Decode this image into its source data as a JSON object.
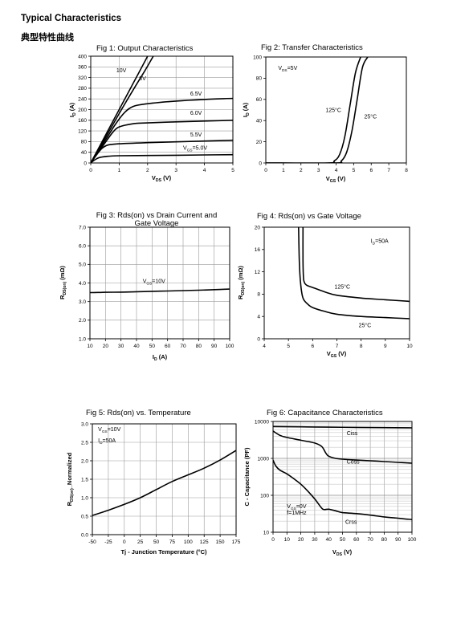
{
  "header": {
    "title": "Typical Characteristics",
    "subtitle": "典型特性曲线"
  },
  "chart_data": [
    {
      "id": "fig1",
      "type": "line",
      "title": "Fig 1: Output Characteristics",
      "xlabel": "V",
      "xlabel_sub": "DS",
      "xlabel_unit": " (V)",
      "ylabel": "I",
      "ylabel_sub": "D",
      "ylabel_unit": " (A)",
      "xlim": [
        0,
        5
      ],
      "ylim": [
        0,
        400
      ],
      "xticks": [
        0,
        1,
        2,
        3,
        4,
        5
      ],
      "yticks": [
        0,
        40,
        80,
        120,
        160,
        200,
        240,
        280,
        320,
        360,
        400
      ],
      "yticks_labels": [
        "0",
        "40",
        "80",
        "120",
        "160",
        "200",
        "240",
        "280",
        "320",
        "360",
        "400"
      ],
      "xticks_labels": [
        "0",
        "1",
        "2",
        "3",
        "4",
        "5"
      ],
      "grid": true,
      "series": [
        {
          "name": "10V",
          "x": [
            0,
            0.3,
            0.6,
            1.0,
            1.5,
            2.0
          ],
          "y": [
            0,
            60,
            120,
            200,
            300,
            400
          ]
        },
        {
          "name": "8V",
          "x": [
            0,
            0.3,
            0.6,
            1.0,
            1.5,
            1.9,
            2.2
          ],
          "y": [
            0,
            55,
            110,
            185,
            275,
            345,
            400
          ]
        },
        {
          "name": "6.5V",
          "x": [
            0,
            0.3,
            0.6,
            0.9,
            1.2,
            1.5,
            2.0,
            3.0,
            4.0,
            5.0
          ],
          "y": [
            0,
            50,
            100,
            150,
            190,
            212,
            222,
            232,
            238,
            242
          ]
        },
        {
          "name": "6.0V",
          "x": [
            0,
            0.3,
            0.6,
            0.8,
            1.0,
            1.5,
            2.0,
            3.0,
            4.0,
            5.0
          ],
          "y": [
            0,
            45,
            90,
            118,
            135,
            147,
            150,
            154,
            157,
            160
          ]
        },
        {
          "name": "5.5V",
          "x": [
            0,
            0.2,
            0.4,
            0.6,
            1.0,
            2.0,
            3.0,
            4.0,
            5.0
          ],
          "y": [
            0,
            30,
            55,
            67,
            72,
            76,
            79,
            82,
            85
          ]
        },
        {
          "name": "5.0V",
          "x": [
            0,
            0.15,
            0.3,
            0.6,
            1.0,
            2.0,
            3.0,
            4.0,
            5.0
          ],
          "y": [
            0,
            12,
            20,
            25,
            27,
            28,
            29,
            30,
            31
          ]
        }
      ],
      "labels": [
        {
          "text": "10V",
          "x": 0.9,
          "y": 340
        },
        {
          "text": "8V",
          "x": 1.7,
          "y": 310
        },
        {
          "text": "6.5V",
          "x": 3.5,
          "y": 252
        },
        {
          "text": "6.0V",
          "x": 3.5,
          "y": 180
        },
        {
          "text": "5.5V",
          "x": 3.5,
          "y": 100
        },
        {
          "text": "V",
          "sub": "GS",
          "after": "=5.0V",
          "x": 3.25,
          "y": 50
        }
      ]
    },
    {
      "id": "fig2",
      "type": "line",
      "title": "Fig 2: Transfer Characteristics",
      "xlabel": "V",
      "xlabel_sub": "GS",
      "xlabel_unit": " (V)",
      "ylabel": "I",
      "ylabel_sub": "D",
      "ylabel_unit": " (A)",
      "xlim": [
        0,
        8
      ],
      "ylim": [
        0,
        100
      ],
      "xticks": [
        0,
        1,
        2,
        3,
        4,
        5,
        6,
        7,
        8
      ],
      "yticks": [
        0,
        20,
        40,
        60,
        80,
        100
      ],
      "xticks_labels": [
        "0",
        "1",
        "2",
        "3",
        "4",
        "5",
        "6",
        "7",
        "8"
      ],
      "yticks_labels": [
        "0",
        "20",
        "40",
        "60",
        "80",
        "100"
      ],
      "grid": false,
      "series": [
        {
          "name": "125°C",
          "x": [
            0,
            3.5,
            3.9,
            4.2,
            4.5,
            4.8,
            5.1,
            5.4
          ],
          "y": [
            0,
            0,
            2,
            8,
            25,
            55,
            85,
            100
          ]
        },
        {
          "name": "25°C",
          "x": [
            0,
            3.9,
            4.3,
            4.6,
            4.9,
            5.2,
            5.5,
            5.8
          ],
          "y": [
            0,
            0,
            2,
            10,
            30,
            60,
            90,
            100
          ]
        }
      ],
      "labels": [
        {
          "text": "V",
          "sub": "DS",
          "after": "=5V",
          "x": 0.7,
          "y": 88
        },
        {
          "text": "125°C",
          "x": 3.4,
          "y": 48
        },
        {
          "text": "25°C",
          "x": 5.6,
          "y": 42
        }
      ]
    },
    {
      "id": "fig3",
      "type": "line",
      "title": "Fig 3: Rds(on) vs Drain Current and",
      "title2": "Gate Voltage",
      "xlabel": "I",
      "xlabel_sub": "D",
      "xlabel_unit": " (A)",
      "ylabel": "R",
      "ylabel_sub": "DS(on)",
      "ylabel_unit": " (mΩ)",
      "xlim": [
        10,
        100
      ],
      "ylim": [
        1.0,
        7.0
      ],
      "xticks": [
        10,
        20,
        30,
        40,
        50,
        60,
        70,
        80,
        90,
        100
      ],
      "yticks": [
        1.0,
        2.0,
        3.0,
        4.0,
        5.0,
        6.0,
        7.0
      ],
      "xticks_labels": [
        "10",
        "20",
        "30",
        "40",
        "50",
        "60",
        "70",
        "80",
        "90",
        "100"
      ],
      "yticks_labels": [
        "1.0",
        "2.0",
        "3.0",
        "4.0",
        "5.0",
        "6.0",
        "7.0"
      ],
      "grid": true,
      "series": [
        {
          "name": "V_GS=10V",
          "x": [
            10,
            20,
            30,
            40,
            50,
            60,
            70,
            80,
            90,
            100
          ],
          "y": [
            3.48,
            3.5,
            3.51,
            3.53,
            3.55,
            3.57,
            3.59,
            3.61,
            3.64,
            3.67
          ]
        }
      ],
      "labels": [
        {
          "text": "V",
          "sub": "GS",
          "after": "=10V",
          "x": 44,
          "y": 4.0
        }
      ]
    },
    {
      "id": "fig4",
      "type": "line",
      "title": "Fig 4: Rds(on) vs Gate Voltage",
      "xlabel": "V",
      "xlabel_sub": "GS",
      "xlabel_unit": " (V)",
      "ylabel": "R",
      "ylabel_sub": "DS(on)",
      "ylabel_unit": " (mΩ)",
      "xlim": [
        4,
        10
      ],
      "ylim": [
        0,
        20
      ],
      "xticks": [
        4,
        5,
        6,
        7,
        8,
        9,
        10
      ],
      "yticks": [
        0,
        4,
        8,
        12,
        16,
        20
      ],
      "xticks_labels": [
        "4",
        "5",
        "6",
        "7",
        "8",
        "9",
        "10"
      ],
      "yticks_labels": [
        "0",
        "4",
        "8",
        "12",
        "16",
        "20"
      ],
      "grid": false,
      "series": [
        {
          "name": "125°C",
          "x": [
            5.6,
            5.6,
            5.62,
            5.65,
            5.7,
            5.8,
            6.0,
            6.5,
            7.0,
            8.0,
            9.0,
            10.0
          ],
          "y": [
            20,
            14,
            11,
            10.2,
            9.8,
            9.5,
            9.2,
            8.4,
            7.8,
            7.3,
            7.0,
            6.7
          ]
        },
        {
          "name": "25°C",
          "x": [
            5.42,
            5.45,
            5.5,
            5.6,
            5.8,
            6.0,
            6.5,
            7.0,
            8.0,
            9.0,
            10.0
          ],
          "y": [
            20,
            14,
            10,
            7.3,
            6.2,
            5.6,
            4.9,
            4.4,
            4.0,
            3.8,
            3.6
          ]
        }
      ],
      "labels": [
        {
          "text": "I",
          "sub": "D",
          "after": "=50A",
          "x": 8.4,
          "y": 17.2
        },
        {
          "text": "125°C",
          "x": 6.9,
          "y": 9.0
        },
        {
          "text": "25°C",
          "x": 7.9,
          "y": 2.1
        }
      ]
    },
    {
      "id": "fig5",
      "type": "line",
      "title": "Fig 5: Rds(on) vs. Temperature",
      "xlabel": "Tj - Junction Temperature (°C)",
      "ylabel": "R",
      "ylabel_sub": "DS(on)",
      "ylabel_unit": "_Normalized",
      "xlim": [
        -50,
        175
      ],
      "ylim": [
        0.0,
        3.0
      ],
      "xticks": [
        -50,
        -25,
        0,
        25,
        50,
        75,
        100,
        125,
        150,
        175
      ],
      "yticks": [
        0.0,
        0.5,
        1.0,
        1.5,
        2.0,
        2.5,
        3.0
      ],
      "xticks_labels": [
        "-50",
        "-25",
        "0",
        "25",
        "50",
        "75",
        "100",
        "125",
        "150",
        "175"
      ],
      "yticks_labels": [
        "0.0",
        "0.5",
        "1.0",
        "1.5",
        "2.0",
        "2.5",
        "3.0"
      ],
      "grid": true,
      "series": [
        {
          "name": "Rds(on)",
          "x": [
            -50,
            -25,
            0,
            25,
            50,
            75,
            100,
            125,
            150,
            175
          ],
          "y": [
            0.52,
            0.66,
            0.82,
            1.0,
            1.22,
            1.44,
            1.62,
            1.8,
            2.02,
            2.28
          ]
        }
      ],
      "labels": [
        {
          "text": "V",
          "sub": "GS",
          "after": "=10V",
          "x": -41,
          "y": 2.8
        },
        {
          "text": "I",
          "sub": "D",
          "after": "=50A",
          "x": -41,
          "y": 2.5
        }
      ]
    },
    {
      "id": "fig6",
      "type": "line",
      "title": "Fig 6: Capacitance Characteristics",
      "xlabel": "V",
      "xlabel_sub": "DS",
      "xlabel_unit": " (V)",
      "ylabel": "C - Capacitance (PF)",
      "xlim": [
        0,
        100
      ],
      "ylim": [
        10,
        10000
      ],
      "yscale": "log",
      "xticks": [
        0,
        10,
        20,
        30,
        40,
        50,
        60,
        70,
        80,
        90,
        100
      ],
      "yticks": [
        10,
        100,
        1000,
        10000
      ],
      "xticks_labels": [
        "0",
        "10",
        "20",
        "30",
        "40",
        "50",
        "60",
        "70",
        "80",
        "90",
        "100"
      ],
      "yticks_labels": [
        "10",
        "100",
        "1000",
        "10000"
      ],
      "grid": true,
      "series": [
        {
          "name": "Ciss",
          "x": [
            0,
            5,
            10,
            20,
            30,
            35,
            38,
            40,
            45,
            50,
            60,
            70,
            80,
            90,
            100
          ],
          "y": [
            5500,
            4200,
            3700,
            3100,
            2600,
            2100,
            1400,
            1150,
            1000,
            950,
            900,
            860,
            820,
            780,
            740
          ]
        },
        {
          "name": "Coss",
          "x": [
            0,
            20,
            40,
            60,
            80,
            100
          ],
          "y": [
            7300,
            7150,
            7000,
            6900,
            6800,
            6700
          ]
        },
        {
          "name": "Crss",
          "x": [
            0,
            2,
            5,
            10,
            15,
            20,
            25,
            30,
            35,
            37,
            40,
            45,
            50,
            60,
            70,
            80,
            90,
            100
          ],
          "y": [
            900,
            620,
            480,
            380,
            280,
            200,
            130,
            80,
            45,
            41,
            42,
            38,
            34,
            32,
            29,
            26,
            24,
            22
          ]
        }
      ],
      "labels": [
        {
          "text": "Ciss",
          "x": 53,
          "y": 4300
        },
        {
          "text": "Coss",
          "x": 53,
          "y": 720
        },
        {
          "text": "V",
          "sub": "GS",
          "after": "=0V",
          "x": 10,
          "y": 45
        },
        {
          "text": "f=1MHz",
          "x": 10,
          "y": 30
        },
        {
          "text": "Crss",
          "x": 52,
          "y": 17
        }
      ]
    }
  ]
}
